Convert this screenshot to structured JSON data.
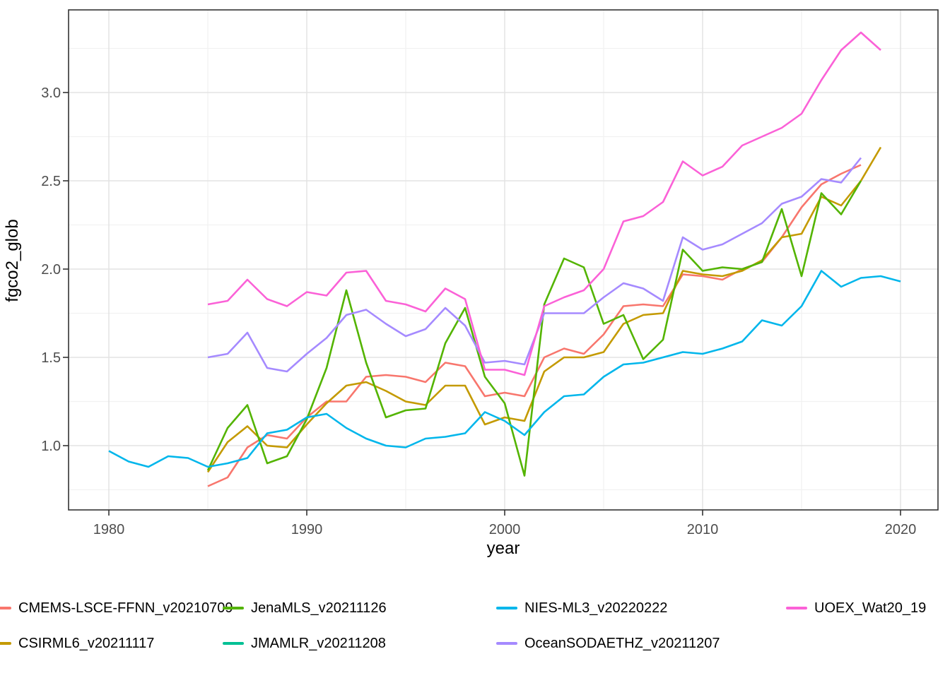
{
  "chart_data": {
    "type": "line",
    "title": "",
    "xlabel": "year",
    "ylabel": "fgco2_glob",
    "x_ticks": [
      1980,
      1990,
      2000,
      2010,
      2020
    ],
    "x_minor_ticks": [
      1985,
      1995,
      2005,
      2015
    ],
    "y_ticks": [
      1.0,
      1.5,
      2.0,
      2.5,
      3.0
    ],
    "y_tick_labels": [
      "1.0",
      "1.5",
      "2.0",
      "2.5",
      "3.0"
    ],
    "y_minor_ticks": [
      0.75,
      1.25,
      1.75,
      2.25,
      2.75,
      3.25
    ],
    "xlim": [
      1977.96,
      2021.93
    ],
    "ylim": [
      0.636,
      3.468
    ],
    "grid": true,
    "legend_position": "bottom",
    "panel_border_color": "#333333",
    "grid_major_color": "#e4e4e4",
    "grid_minor_color": "#f1f1f1",
    "tick_label_color": "#4d4d4d",
    "series": [
      {
        "name": "CMEMS-LSCE-FFNN_v20210709",
        "color": "#F8766D",
        "start_year": 1985,
        "values": [
          0.77,
          0.82,
          0.99,
          1.06,
          1.04,
          1.16,
          1.25,
          1.25,
          1.39,
          1.4,
          1.39,
          1.36,
          1.47,
          1.45,
          1.28,
          1.3,
          1.28,
          1.5,
          1.55,
          1.52,
          1.63,
          1.79,
          1.8,
          1.79,
          1.97,
          1.96,
          1.94,
          2.0,
          2.04,
          2.18,
          2.35,
          2.48,
          2.54,
          2.59
        ]
      },
      {
        "name": "CSIRML6_v20211117",
        "color": "#C49A00",
        "start_year": 1985,
        "values": [
          0.85,
          1.02,
          1.11,
          1.0,
          0.99,
          1.12,
          1.24,
          1.34,
          1.36,
          1.31,
          1.25,
          1.23,
          1.34,
          1.34,
          1.12,
          1.16,
          1.14,
          1.42,
          1.5,
          1.5,
          1.53,
          1.69,
          1.74,
          1.75,
          1.99,
          1.97,
          1.96,
          1.99,
          2.05,
          2.18,
          2.2,
          2.41,
          2.36,
          2.5,
          2.69
        ]
      },
      {
        "name": "JenaMLS_v20211126",
        "color": "#53B400",
        "start_year": 1985,
        "values": [
          0.86,
          1.1,
          1.23,
          0.9,
          0.94,
          1.15,
          1.44,
          1.88,
          1.47,
          1.16,
          1.2,
          1.21,
          1.58,
          1.78,
          1.39,
          1.24,
          0.83,
          1.8,
          2.06,
          2.01,
          1.69,
          1.74,
          1.49,
          1.6,
          2.11,
          1.99,
          2.01,
          2.0,
          2.04,
          2.34,
          1.96,
          2.43,
          2.31,
          2.5
        ]
      },
      {
        "name": "JMAMLR_v20211208",
        "color": "#00C094",
        "start_year": 1985,
        "values": [],
        "note": "line not visibly distinguishable in plot (hidden behind other series); legend entry only"
      },
      {
        "name": "NIES-ML3_v20220222",
        "color": "#00B6EB",
        "start_year": 1980,
        "values": [
          0.97,
          0.91,
          0.88,
          0.94,
          0.93,
          0.88,
          0.9,
          0.93,
          1.07,
          1.09,
          1.16,
          1.18,
          1.1,
          1.04,
          1.0,
          0.99,
          1.04,
          1.05,
          1.07,
          1.19,
          1.14,
          1.06,
          1.19,
          1.28,
          1.29,
          1.39,
          1.46,
          1.47,
          1.5,
          1.53,
          1.52,
          1.55,
          1.59,
          1.71,
          1.68,
          1.79,
          1.99,
          1.9,
          1.95,
          1.96,
          1.93
        ]
      },
      {
        "name": "OceanSODAETHZ_v20211207",
        "color": "#A58AFF",
        "start_year": 1985,
        "values": [
          1.5,
          1.52,
          1.64,
          1.44,
          1.42,
          1.52,
          1.61,
          1.74,
          1.77,
          1.69,
          1.62,
          1.66,
          1.78,
          1.68,
          1.47,
          1.48,
          1.46,
          1.75,
          1.75,
          1.75,
          1.84,
          1.92,
          1.89,
          1.82,
          2.18,
          2.11,
          2.14,
          2.2,
          2.26,
          2.37,
          2.41,
          2.51,
          2.49,
          2.63
        ]
      },
      {
        "name": "UOEX_Wat20_19",
        "color": "#FB61D7",
        "start_year": 1985,
        "values": [
          1.8,
          1.82,
          1.94,
          1.83,
          1.79,
          1.87,
          1.85,
          1.98,
          1.99,
          1.82,
          1.8,
          1.76,
          1.89,
          1.83,
          1.43,
          1.43,
          1.4,
          1.79,
          1.84,
          1.88,
          2.0,
          2.27,
          2.3,
          2.38,
          2.61,
          2.53,
          2.58,
          2.7,
          2.75,
          2.8,
          2.88,
          3.07,
          3.24,
          3.34,
          3.24
        ]
      }
    ]
  },
  "legend": {
    "items": [
      {
        "label": "CMEMS-LSCE-FFNN_v20210709",
        "color": "#F8766D",
        "row": 0,
        "col": 0
      },
      {
        "label": "CSIRML6_v20211117",
        "color": "#C49A00",
        "row": 1,
        "col": 0
      },
      {
        "label": "JenaMLS_v20211126",
        "color": "#53B400",
        "row": 0,
        "col": 1
      },
      {
        "label": "JMAMLR_v20211208",
        "color": "#00C094",
        "row": 1,
        "col": 1
      },
      {
        "label": "NIES-ML3_v20220222",
        "color": "#00B6EB",
        "row": 0,
        "col": 2
      },
      {
        "label": "OceanSODAETHZ_v20211207",
        "color": "#A58AFF",
        "row": 1,
        "col": 2
      },
      {
        "label": "UOEX_Wat20_19",
        "color": "#FB61D7",
        "row": 0,
        "col": 3
      }
    ]
  }
}
